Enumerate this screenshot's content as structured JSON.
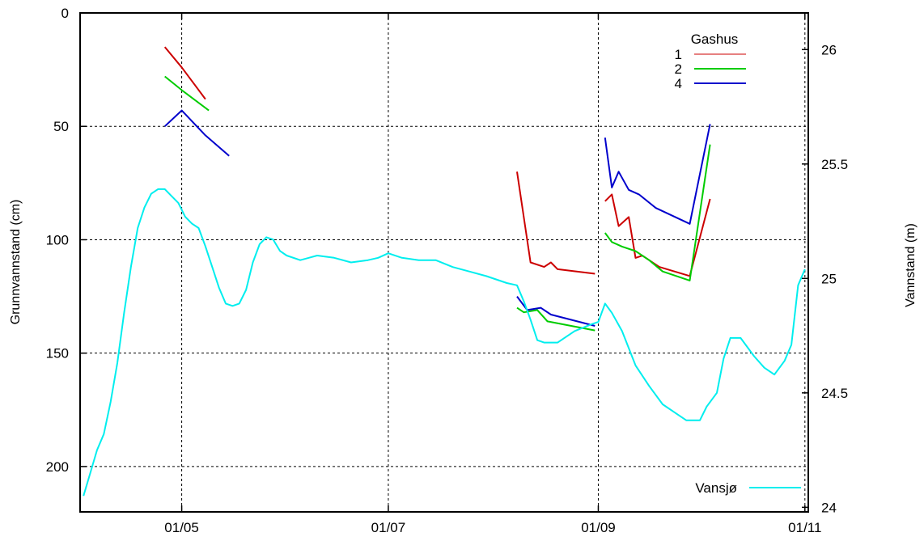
{
  "chart_data": {
    "type": "line",
    "title": "",
    "ylabel_left": "Grunnvannstand (cm)",
    "ylabel_right": "Vannstand (m)",
    "xlabel": "",
    "x_ticks": [
      "01/05",
      "01/07",
      "01/09",
      "01/11"
    ],
    "x_range": [
      "2010-04-01",
      "2010-11-02"
    ],
    "y_left_range": [
      220,
      0
    ],
    "y_left_inverted": true,
    "y_left_ticks": [
      0,
      50,
      100,
      150,
      200
    ],
    "y_right_range": [
      23.98,
      26.16
    ],
    "y_right_ticks": [
      24,
      24.5,
      25,
      25.5,
      26
    ],
    "grid": true,
    "legend_title": "Gashus",
    "series": [
      {
        "name": "1",
        "axis": "left",
        "color": "#cc0000",
        "segments": [
          [
            [
              "2010-04-26",
              15
            ],
            [
              "2010-05-01",
              24
            ],
            [
              "2010-05-05",
              32
            ],
            [
              "2010-05-08",
              38
            ]
          ],
          [
            [
              "2010-08-08",
              70
            ],
            [
              "2010-08-12",
              110
            ],
            [
              "2010-08-16",
              112
            ],
            [
              "2010-08-18",
              110
            ],
            [
              "2010-08-20",
              113
            ],
            [
              "2010-08-31",
              115
            ]
          ],
          [
            [
              "2010-09-03",
              83
            ],
            [
              "2010-09-05",
              80
            ],
            [
              "2010-09-07",
              94
            ],
            [
              "2010-09-10",
              90
            ],
            [
              "2010-09-12",
              108
            ],
            [
              "2010-09-14",
              107
            ],
            [
              "2010-09-19",
              112
            ],
            [
              "2010-09-28",
              116
            ],
            [
              "2010-10-04",
              82
            ]
          ]
        ]
      },
      {
        "name": "2",
        "axis": "left",
        "color": "#00cc00",
        "segments": [
          [
            [
              "2010-04-26",
              28
            ],
            [
              "2010-05-01",
              34
            ],
            [
              "2010-05-09",
              43
            ]
          ],
          [
            [
              "2010-08-08",
              130
            ],
            [
              "2010-08-10",
              132
            ],
            [
              "2010-08-14",
              131
            ],
            [
              "2010-08-17",
              136
            ],
            [
              "2010-08-31",
              140
            ]
          ],
          [
            [
              "2010-09-03",
              97
            ],
            [
              "2010-09-05",
              101
            ],
            [
              "2010-09-08",
              103
            ],
            [
              "2010-09-12",
              105
            ],
            [
              "2010-09-16",
              109
            ],
            [
              "2010-09-20",
              114
            ],
            [
              "2010-09-28",
              118
            ],
            [
              "2010-10-04",
              58
            ]
          ]
        ]
      },
      {
        "name": "4",
        "axis": "left",
        "color": "#0000cc",
        "segments": [
          [
            [
              "2010-04-26",
              50
            ],
            [
              "2010-05-01",
              43
            ],
            [
              "2010-05-08",
              54
            ],
            [
              "2010-05-15",
              63
            ]
          ],
          [
            [
              "2010-08-08",
              125
            ],
            [
              "2010-08-11",
              131
            ],
            [
              "2010-08-15",
              130
            ],
            [
              "2010-08-18",
              133
            ],
            [
              "2010-08-31",
              138
            ]
          ],
          [
            [
              "2010-09-03",
              55
            ],
            [
              "2010-09-05",
              77
            ],
            [
              "2010-09-07",
              70
            ],
            [
              "2010-09-10",
              78
            ],
            [
              "2010-09-13",
              80
            ],
            [
              "2010-09-18",
              86
            ],
            [
              "2010-09-28",
              93
            ],
            [
              "2010-10-04",
              49
            ]
          ]
        ]
      },
      {
        "name": "Vansjø",
        "axis": "right",
        "color": "#00eeee",
        "points": [
          [
            "2010-04-02",
            24.05
          ],
          [
            "2010-04-04",
            24.15
          ],
          [
            "2010-04-06",
            24.25
          ],
          [
            "2010-04-08",
            24.32
          ],
          [
            "2010-04-10",
            24.46
          ],
          [
            "2010-04-12",
            24.63
          ],
          [
            "2010-04-14",
            24.85
          ],
          [
            "2010-04-16",
            25.05
          ],
          [
            "2010-04-18",
            25.22
          ],
          [
            "2010-04-20",
            25.31
          ],
          [
            "2010-04-22",
            25.37
          ],
          [
            "2010-04-24",
            25.39
          ],
          [
            "2010-04-26",
            25.39
          ],
          [
            "2010-04-28",
            25.36
          ],
          [
            "2010-04-30",
            25.33
          ],
          [
            "2010-05-02",
            25.27
          ],
          [
            "2010-05-04",
            25.24
          ],
          [
            "2010-05-06",
            25.22
          ],
          [
            "2010-05-08",
            25.14
          ],
          [
            "2010-05-10",
            25.05
          ],
          [
            "2010-05-12",
            24.96
          ],
          [
            "2010-05-14",
            24.89
          ],
          [
            "2010-05-16",
            24.88
          ],
          [
            "2010-05-18",
            24.89
          ],
          [
            "2010-05-20",
            24.95
          ],
          [
            "2010-05-22",
            25.07
          ],
          [
            "2010-05-24",
            25.15
          ],
          [
            "2010-05-26",
            25.18
          ],
          [
            "2010-05-28",
            25.17
          ],
          [
            "2010-05-30",
            25.12
          ],
          [
            "2010-06-01",
            25.1
          ],
          [
            "2010-06-05",
            25.08
          ],
          [
            "2010-06-10",
            25.1
          ],
          [
            "2010-06-15",
            25.09
          ],
          [
            "2010-06-20",
            25.07
          ],
          [
            "2010-06-25",
            25.08
          ],
          [
            "2010-06-28",
            25.09
          ],
          [
            "2010-07-01",
            25.11
          ],
          [
            "2010-07-05",
            25.09
          ],
          [
            "2010-07-10",
            25.08
          ],
          [
            "2010-07-15",
            25.08
          ],
          [
            "2010-07-20",
            25.05
          ],
          [
            "2010-07-25",
            25.03
          ],
          [
            "2010-07-30",
            25.01
          ],
          [
            "2010-08-05",
            24.98
          ],
          [
            "2010-08-08",
            24.97
          ],
          [
            "2010-08-10",
            24.9
          ],
          [
            "2010-08-12",
            24.82
          ],
          [
            "2010-08-14",
            24.73
          ],
          [
            "2010-08-16",
            24.72
          ],
          [
            "2010-08-20",
            24.72
          ],
          [
            "2010-08-25",
            24.77
          ],
          [
            "2010-08-30",
            24.8
          ],
          [
            "2010-09-01",
            24.81
          ],
          [
            "2010-09-03",
            24.89
          ],
          [
            "2010-09-05",
            24.85
          ],
          [
            "2010-09-08",
            24.77
          ],
          [
            "2010-09-12",
            24.62
          ],
          [
            "2010-09-16",
            24.53
          ],
          [
            "2010-09-20",
            24.45
          ],
          [
            "2010-09-24",
            24.41
          ],
          [
            "2010-09-27",
            24.38
          ],
          [
            "2010-10-01",
            24.38
          ],
          [
            "2010-10-03",
            24.44
          ],
          [
            "2010-10-06",
            24.5
          ],
          [
            "2010-10-08",
            24.65
          ],
          [
            "2010-10-10",
            24.74
          ],
          [
            "2010-10-13",
            24.74
          ],
          [
            "2010-10-17",
            24.66
          ],
          [
            "2010-10-20",
            24.61
          ],
          [
            "2010-10-23",
            24.58
          ],
          [
            "2010-10-26",
            24.64
          ],
          [
            "2010-10-28",
            24.71
          ],
          [
            "2010-10-30",
            24.97
          ],
          [
            "2010-11-01",
            25.04
          ]
        ]
      }
    ]
  }
}
